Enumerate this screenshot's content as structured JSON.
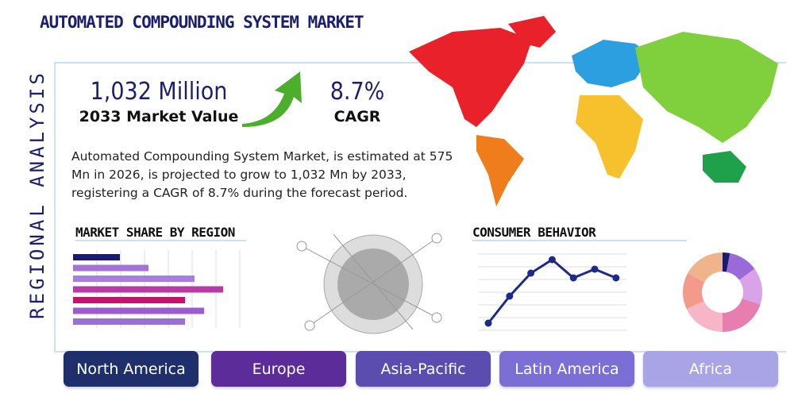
{
  "header": {
    "title": "AUTOMATED COMPOUNDING SYSTEM MARKET",
    "side_label": "REGIONAL ANALYSIS"
  },
  "kpis": [
    {
      "value": "1,032 Million",
      "label": "2033 Market Value"
    },
    {
      "value": "8.7%",
      "label": "CAGR"
    }
  ],
  "description": "Automated Compounding System Market, is estimated at 575 Mn in 2026, is projected to grow to 1,032 Mn by 2033, registering a CAGR of 8.7% during the forecast period.",
  "market_share": {
    "type": "bar",
    "title": "MARKET SHARE BY REGION",
    "values": [
      59,
      95,
      153,
      189,
      141,
      165,
      141
    ],
    "colors": [
      "#1c1a6e",
      "#a374d4",
      "#a87fe0",
      "#b83aa6",
      "#c4156a",
      "#9b5ccc",
      "#9a6fd6"
    ]
  },
  "consumer_behavior": {
    "type": "line",
    "title": "CONSUMER BEHAVIOR",
    "values": [
      8,
      42,
      71,
      88,
      65,
      76,
      65
    ],
    "color": "#1e2a8a"
  },
  "share_donut": {
    "type": "pie",
    "values": [
      3,
      12,
      15,
      20,
      18,
      15,
      17
    ],
    "colors": [
      "#1c1a6e",
      "#9b6ad8",
      "#d9a3e8",
      "#e67fb0",
      "#f6b6c8",
      "#f39a8c",
      "#f0b48a"
    ]
  },
  "regions": [
    "North America",
    "Europe",
    "Asia-Pacific",
    "Latin America",
    "Africa"
  ]
}
